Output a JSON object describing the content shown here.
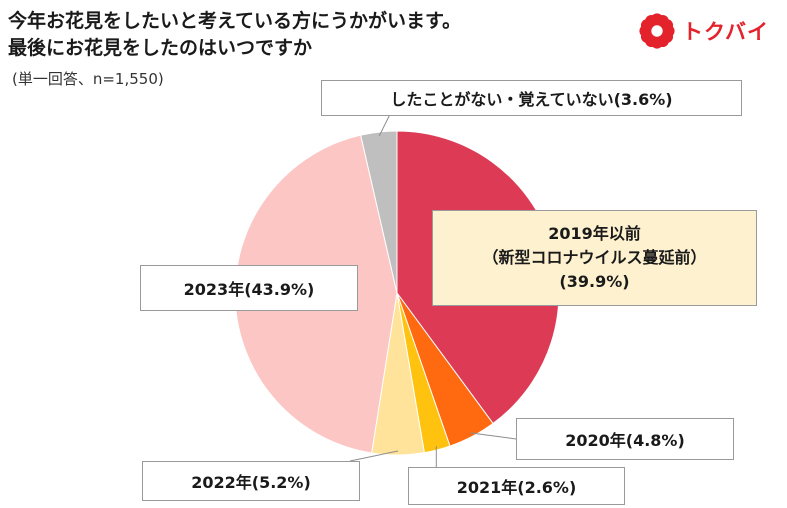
{
  "title_lines": [
    "今年お花見をしたいと考えている方にうかがいます。",
    "最後にお花見をしたのはいつですか"
  ],
  "subtitle": "(単一回答、n=1,550)",
  "logo": {
    "text": "トクバイ",
    "icon": "flower-logo-icon",
    "color": "#e3222b"
  },
  "chart_data": {
    "type": "pie",
    "title": "今年お花見をしたいと考えている方にうかがいます。最後にお花見をしたのはいつですか",
    "subtitle": "(単一回答、n=1,550)",
    "start": "12 o'clock, clockwise",
    "slices": [
      {
        "key": "s2019",
        "name": "2019年以前（新型コロナウイルス蔓延前）",
        "value": 39.9,
        "color": "#dd3a55",
        "label_lines": [
          "2019年以前",
          "（新型コロナウイルス蔓延前）",
          "(39.9%)"
        ]
      },
      {
        "key": "s2020",
        "name": "2020年",
        "value": 4.8,
        "color": "#ff6a10",
        "label": "2020年(4.8%)"
      },
      {
        "key": "s2021",
        "name": "2021年",
        "value": 2.6,
        "color": "#ffc20e",
        "label": "2021年(2.6%)"
      },
      {
        "key": "s2022",
        "name": "2022年",
        "value": 5.2,
        "color": "#ffe39a",
        "label": "2022年(5.2%)"
      },
      {
        "key": "s2023",
        "name": "2023年",
        "value": 43.9,
        "color": "#fcc6c4",
        "label": "2023年(43.9%)"
      },
      {
        "key": "snone",
        "name": "したことがない・覚えていない",
        "value": 3.6,
        "color": "#bfbfbf",
        "label": "したことがない・覚えていない(3.6%)"
      }
    ]
  }
}
